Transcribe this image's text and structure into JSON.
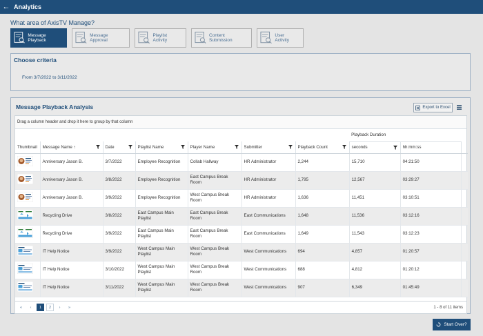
{
  "topbar": {
    "back_icon": "arrow-left-icon",
    "title": "Analytics"
  },
  "question": "What area of AxisTV Manage?",
  "areas": [
    {
      "label": "Message Playback",
      "icon": "message-playback-icon",
      "active": true
    },
    {
      "label": "Message Approval",
      "icon": "message-approval-icon",
      "active": false
    },
    {
      "label": "Playlist Activity",
      "icon": "playlist-activity-icon",
      "active": false
    },
    {
      "label": "Content Submission",
      "icon": "content-submission-icon",
      "active": false
    },
    {
      "label": "User Activity",
      "icon": "user-activity-icon",
      "active": false
    }
  ],
  "criteria": {
    "title": "Choose criteria",
    "range": "From 3/7/2022 to 3/11/2022"
  },
  "analysis": {
    "title": "Message Playback Analysis",
    "export_label": "Export to Excel",
    "group_hint": "Drag a column header and drop it here to group by that column",
    "group_header": "Playback Duration",
    "columns": [
      "Thumbnail",
      "Message Name",
      "Date",
      "Playlist Name",
      "Player Name",
      "Submitter",
      "Playback Count",
      "seconds",
      "hh:mm:ss"
    ],
    "rows": [
      {
        "thumb": "anniversary",
        "message": "Anniversary Jason B.",
        "date": "3/7/2022",
        "playlist": "Employee Recognition",
        "player": "Collab Hallway",
        "submitter": "HR Administrator",
        "count": "2,244",
        "seconds": "15,710",
        "hms": "04:21:50"
      },
      {
        "thumb": "anniversary",
        "message": "Anniversary Jason B.",
        "date": "3/8/2022",
        "playlist": "Employee Recognition",
        "player": "East Campus Break Room",
        "submitter": "HR Administrator",
        "count": "1,795",
        "seconds": "12,567",
        "hms": "03:29:27"
      },
      {
        "thumb": "anniversary",
        "message": "Anniversary Jason B.",
        "date": "3/9/2022",
        "playlist": "Employee Recognition",
        "player": "West Campus Break Room",
        "submitter": "HR Administrator",
        "count": "1,636",
        "seconds": "11,451",
        "hms": "03:10:51"
      },
      {
        "thumb": "recycling",
        "message": "Recycling Drive",
        "date": "3/8/2022",
        "playlist": "East Campus Main Playlist",
        "player": "East Campus Break Room",
        "submitter": "East Communications",
        "count": "1,648",
        "seconds": "11,536",
        "hms": "03:12:16"
      },
      {
        "thumb": "recycling",
        "message": "Recycling Drive",
        "date": "3/9/2022",
        "playlist": "East Campus Main Playlist",
        "player": "East Campus Break Room",
        "submitter": "East Communications",
        "count": "1,649",
        "seconds": "11,543",
        "hms": "03:12:23"
      },
      {
        "thumb": "ithelp",
        "message": "IT Help Notice",
        "date": "3/9/2022",
        "playlist": "West Campus Main Playlist",
        "player": "West Campus Break Room",
        "submitter": "West Communications",
        "count": "694",
        "seconds": "4,857",
        "hms": "01:20:57"
      },
      {
        "thumb": "ithelp",
        "message": "IT Help Notice",
        "date": "3/10/2022",
        "playlist": "West Campus Main Playlist",
        "player": "West Campus Break Room",
        "submitter": "West Communications",
        "count": "688",
        "seconds": "4,812",
        "hms": "01:20:12"
      },
      {
        "thumb": "ithelp",
        "message": "IT Help Notice",
        "date": "3/11/2022",
        "playlist": "West Campus Main Playlist",
        "player": "West Campus Break Room",
        "submitter": "West Communications",
        "count": "907",
        "seconds": "6,349",
        "hms": "01:45:49"
      }
    ],
    "pager": {
      "first": "«",
      "prev": "‹",
      "pages": [
        "1",
        "2"
      ],
      "current": "1",
      "next": "›",
      "last": "»",
      "info": "1 - 8 of 11 items"
    }
  },
  "start_over_label": "Start Over?",
  "colors": {
    "brand": "#1f4e7a",
    "background": "#e4e4e4"
  }
}
